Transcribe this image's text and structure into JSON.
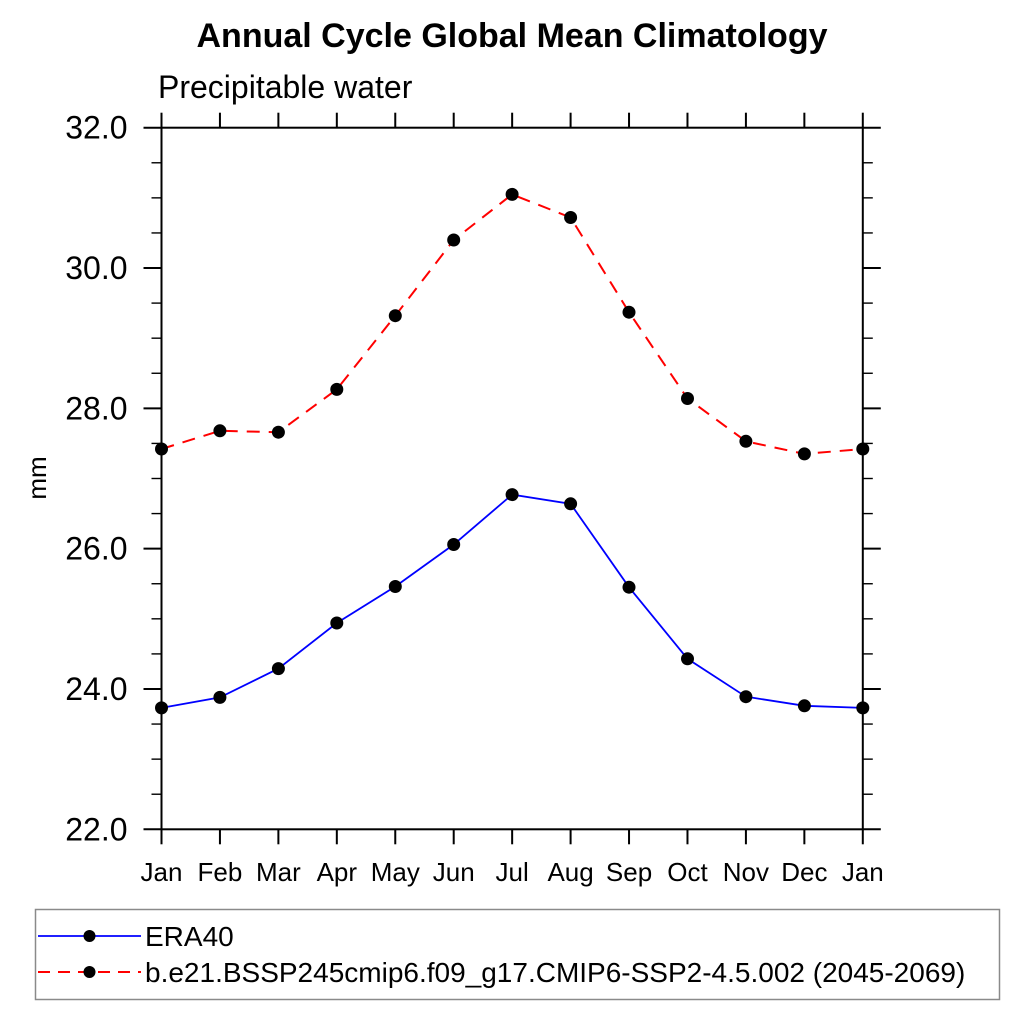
{
  "chart_data": {
    "type": "line",
    "title": "Annual Cycle Global Mean Climatology",
    "subtitle": "Precipitable water",
    "ylabel": "mm",
    "x_tick_labels": [
      "Jan",
      "Feb",
      "Mar",
      "Apr",
      "May",
      "Jun",
      "Jul",
      "Aug",
      "Sep",
      "Oct",
      "Nov",
      "Dec",
      "Jan"
    ],
    "ylim": [
      22.0,
      32.0
    ],
    "y_major_ticks": [
      22.0,
      24.0,
      26.0,
      28.0,
      30.0,
      32.0
    ],
    "y_major_tick_labels": [
      "22.0",
      "24.0",
      "26.0",
      "28.0",
      "30.0",
      "32.0"
    ],
    "y_minor_step": 0.5,
    "grid": false,
    "legend_position": "bottom-box",
    "axis_color": "#000000",
    "marker_shape": "filled-circle",
    "series": [
      {
        "name": "ERA40",
        "color": "#0000ff",
        "line_style": "solid",
        "marker_color": "#000000",
        "values": [
          23.73,
          23.88,
          24.29,
          24.94,
          25.46,
          26.06,
          26.77,
          26.64,
          25.45,
          24.43,
          23.89,
          23.76,
          23.73
        ]
      },
      {
        "name": "b.e21.BSSP245cmip6.f09_g17.CMIP6-SSP2-4.5.002 (2045-2069)",
        "color": "#ff0000",
        "line_style": "dashed",
        "marker_color": "#000000",
        "values": [
          27.42,
          27.68,
          27.66,
          28.27,
          29.32,
          30.4,
          31.05,
          30.72,
          29.37,
          28.14,
          27.53,
          27.35,
          27.42
        ]
      }
    ]
  }
}
